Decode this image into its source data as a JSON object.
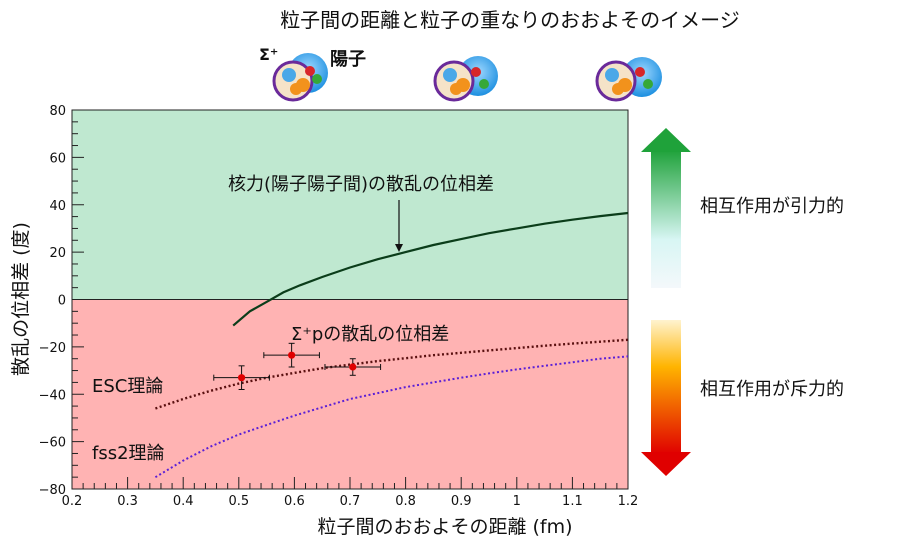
{
  "header": {
    "title": "粒子間の距離と粒子の重なりのおおよそのイメージ",
    "sigma_label": "Σ⁺",
    "proton_label": "陽子"
  },
  "right_labels": {
    "attraction": "相互作用が引力的",
    "repulsion": "相互作用が斥力的"
  },
  "colors": {
    "attractive_region": "#bfe8d0",
    "repulsive_region": "#ffb3b3",
    "nuclear_curve": "#0b3d1a",
    "esc_curve": "#5a1010",
    "fss2_curve": "#5a1fd6",
    "data_point": "#e00000",
    "arrow_up_top": "#1fa23a",
    "arrow_down_bottom": "#e00000"
  },
  "chart_data": {
    "type": "line",
    "xlabel": "粒子間のおおよその距離 (fm)",
    "ylabel": "散乱の位相差 (度)",
    "xlim": [
      0.2,
      1.2
    ],
    "ylim": [
      -80,
      80
    ],
    "x_ticks": [
      "0.2",
      "0.3",
      "0.4",
      "0.5",
      "0.6",
      "0.7",
      "0.8",
      "0.9",
      "1",
      "1.1",
      "1.2"
    ],
    "y_ticks": [
      "80",
      "60",
      "40",
      "20",
      "0",
      "−20",
      "−40",
      "−60",
      "−80"
    ],
    "annotations": {
      "nuclear": "核力(陽子陽子間)の散乱の位相差",
      "sigma_p": "Σ⁺pの散乱の位相差",
      "esc": "ESC理論",
      "fss2": "fss2理論"
    },
    "series": [
      {
        "key": "nuclear",
        "x": [
          0.49,
          0.52,
          0.55,
          0.58,
          0.61,
          0.65,
          0.7,
          0.75,
          0.8,
          0.85,
          0.9,
          0.95,
          1.0,
          1.05,
          1.1,
          1.15,
          1.2
        ],
        "y": [
          -11,
          -5,
          -1,
          3,
          6,
          9.5,
          13.5,
          17,
          20,
          23,
          25.5,
          28,
          30,
          32,
          33.7,
          35.2,
          36.5
        ]
      },
      {
        "key": "esc",
        "x": [
          0.35,
          0.4,
          0.45,
          0.5,
          0.55,
          0.6,
          0.65,
          0.7,
          0.75,
          0.8,
          0.85,
          0.9,
          0.95,
          1.0,
          1.05,
          1.1,
          1.15,
          1.2
        ],
        "y": [
          -46,
          -42,
          -38.5,
          -35.5,
          -33,
          -31,
          -29,
          -27.5,
          -26,
          -24.8,
          -23.5,
          -22.5,
          -21.5,
          -20.5,
          -19.5,
          -18.6,
          -17.8,
          -17
        ]
      },
      {
        "key": "fss2",
        "x": [
          0.35,
          0.4,
          0.45,
          0.5,
          0.55,
          0.6,
          0.65,
          0.7,
          0.75,
          0.8,
          0.85,
          0.9,
          0.95,
          1.0,
          1.05,
          1.1,
          1.15,
          1.2
        ],
        "y": [
          -75,
          -68,
          -62,
          -57,
          -53,
          -49,
          -45.5,
          -42,
          -39.5,
          -37,
          -35,
          -33,
          -31.2,
          -29.5,
          -28,
          -26.5,
          -25,
          -24
        ]
      }
    ],
    "points": [
      {
        "x": 0.505,
        "y": -33,
        "xerr": 0.05,
        "yerr": 5
      },
      {
        "x": 0.595,
        "y": -23.5,
        "xerr": 0.05,
        "yerr": 5
      },
      {
        "x": 0.705,
        "y": -28.5,
        "xerr": 0.05,
        "yerr": 3.5
      }
    ]
  }
}
